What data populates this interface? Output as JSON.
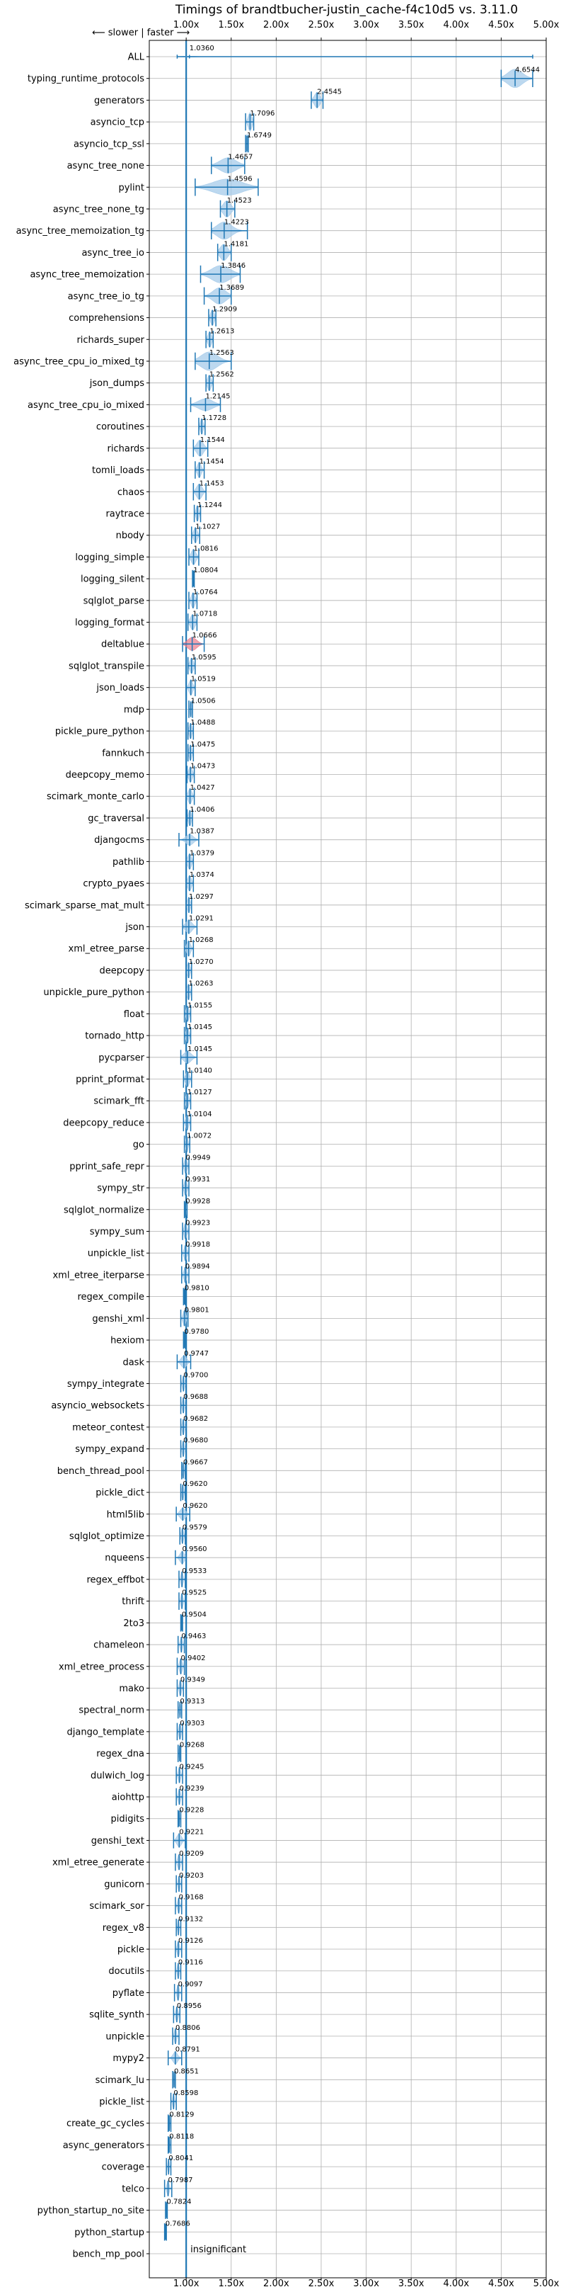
{
  "chart_data": {
    "type": "violin",
    "title": "Timings of brandtbucher-justin_cache-f4c10d5 vs. 3.11.0",
    "direction_label": "⟵ slower | faster ⟶",
    "x_ticks": [
      "1.00x",
      "1.50x",
      "2.00x",
      "2.50x",
      "3.00x",
      "3.50x",
      "4.00x",
      "4.50x",
      "5.00x"
    ],
    "x_tick_values": [
      1.0,
      1.5,
      2.0,
      2.5,
      3.0,
      3.5,
      4.0,
      4.5,
      5.0
    ],
    "xlim": [
      0.59,
      5.0
    ],
    "reference_line": 1.0,
    "insignificant_label": "insignificant",
    "colors": {
      "violin": "#a5cbea",
      "line": "#1f77b4",
      "reference": "#1f77b4",
      "highlight": "#e87c8c"
    },
    "benchmarks": [
      {
        "name": "ALL",
        "value": 1.036,
        "label": "1.0360",
        "lo": 0.9,
        "hi": 4.85,
        "width": 0.05,
        "spread": 0.07
      },
      {
        "name": "typing_runtime_protocols",
        "value": 4.6544,
        "label": "4.6544",
        "lo": 4.5,
        "hi": 4.85,
        "width": 0.85,
        "spread": 0.08
      },
      {
        "name": "generators",
        "value": 2.4545,
        "label": "2.4545",
        "lo": 2.39,
        "hi": 2.52,
        "width": 0.7,
        "spread": 0.03
      },
      {
        "name": "asyncio_tcp",
        "value": 1.7096,
        "label": "1.7096",
        "lo": 1.66,
        "hi": 1.75,
        "width": 0.85,
        "spread": 0.02
      },
      {
        "name": "asyncio_tcp_ssl",
        "value": 1.6749,
        "label": "1.6749",
        "lo": 1.66,
        "hi": 1.69,
        "width": 0.85,
        "spread": 0.007
      },
      {
        "name": "async_tree_none",
        "value": 1.4657,
        "label": "1.4657",
        "lo": 1.28,
        "hi": 1.65,
        "width": 0.7,
        "spread": 0.09
      },
      {
        "name": "pylint",
        "value": 1.4596,
        "label": "1.4596",
        "lo": 1.1,
        "hi": 1.8,
        "width": 0.75,
        "spread": 0.16
      },
      {
        "name": "async_tree_none_tg",
        "value": 1.4523,
        "label": "1.4523",
        "lo": 1.38,
        "hi": 1.54,
        "width": 0.75,
        "spread": 0.04
      },
      {
        "name": "async_tree_memoization_tg",
        "value": 1.4223,
        "label": "1.4223",
        "lo": 1.28,
        "hi": 1.68,
        "width": 0.8,
        "spread": 0.08
      },
      {
        "name": "async_tree_io",
        "value": 1.4181,
        "label": "1.4181",
        "lo": 1.35,
        "hi": 1.5,
        "width": 0.75,
        "spread": 0.04
      },
      {
        "name": "async_tree_memoization",
        "value": 1.3846,
        "label": "1.3846",
        "lo": 1.16,
        "hi": 1.6,
        "width": 0.8,
        "spread": 0.1
      },
      {
        "name": "async_tree_io_tg",
        "value": 1.3689,
        "label": "1.3689",
        "lo": 1.2,
        "hi": 1.5,
        "width": 0.75,
        "spread": 0.07
      },
      {
        "name": "comprehensions",
        "value": 1.2909,
        "label": "1.2909",
        "lo": 1.25,
        "hi": 1.33,
        "width": 0.7,
        "spread": 0.02
      },
      {
        "name": "richards_super",
        "value": 1.2613,
        "label": "1.2613",
        "lo": 1.22,
        "hi": 1.3,
        "width": 0.7,
        "spread": 0.02
      },
      {
        "name": "async_tree_cpu_io_mixed_tg",
        "value": 1.2563,
        "label": "1.2563",
        "lo": 1.1,
        "hi": 1.5,
        "width": 0.85,
        "spread": 0.09
      },
      {
        "name": "json_dumps",
        "value": 1.2562,
        "label": "1.2562",
        "lo": 1.22,
        "hi": 1.3,
        "width": 0.7,
        "spread": 0.02
      },
      {
        "name": "async_tree_cpu_io_mixed",
        "value": 1.2145,
        "label": "1.2145",
        "lo": 1.05,
        "hi": 1.38,
        "width": 0.55,
        "spread": 0.08
      },
      {
        "name": "coroutines",
        "value": 1.1728,
        "label": "1.1728",
        "lo": 1.14,
        "hi": 1.21,
        "width": 0.7,
        "spread": 0.015
      },
      {
        "name": "richards",
        "value": 1.1544,
        "label": "1.1544",
        "lo": 1.08,
        "hi": 1.24,
        "width": 0.75,
        "spread": 0.035
      },
      {
        "name": "tomli_loads",
        "value": 1.1454,
        "label": "1.1454",
        "lo": 1.1,
        "hi": 1.2,
        "width": 0.7,
        "spread": 0.02
      },
      {
        "name": "chaos",
        "value": 1.1453,
        "label": "1.1453",
        "lo": 1.08,
        "hi": 1.22,
        "width": 0.7,
        "spread": 0.03
      },
      {
        "name": "raytrace",
        "value": 1.1244,
        "label": "1.1244",
        "lo": 1.09,
        "hi": 1.16,
        "width": 0.7,
        "spread": 0.015
      },
      {
        "name": "nbody",
        "value": 1.1027,
        "label": "1.1027",
        "lo": 1.06,
        "hi": 1.15,
        "width": 0.7,
        "spread": 0.02
      },
      {
        "name": "logging_simple",
        "value": 1.0816,
        "label": "1.0816",
        "lo": 1.03,
        "hi": 1.14,
        "width": 0.7,
        "spread": 0.025
      },
      {
        "name": "logging_silent",
        "value": 1.0804,
        "label": "1.0804",
        "lo": 1.07,
        "hi": 1.09,
        "width": 0.7,
        "spread": 0.006
      },
      {
        "name": "sqlglot_parse",
        "value": 1.0764,
        "label": "1.0764",
        "lo": 1.03,
        "hi": 1.12,
        "width": 0.7,
        "spread": 0.02
      },
      {
        "name": "logging_format",
        "value": 1.0718,
        "label": "1.0718",
        "lo": 1.02,
        "hi": 1.12,
        "width": 0.7,
        "spread": 0.025
      },
      {
        "name": "deltablue",
        "value": 1.0666,
        "label": "1.0666",
        "lo": 0.96,
        "hi": 1.2,
        "width": 0.6,
        "spread": 0.05,
        "highlight": true
      },
      {
        "name": "sqlglot_transpile",
        "value": 1.0595,
        "label": "1.0595",
        "lo": 1.02,
        "hi": 1.1,
        "width": 0.7,
        "spread": 0.02
      },
      {
        "name": "json_loads",
        "value": 1.0519,
        "label": "1.0519",
        "lo": 1.0,
        "hi": 1.1,
        "width": 0.7,
        "spread": 0.02
      },
      {
        "name": "mdp",
        "value": 1.0506,
        "label": "1.0506",
        "lo": 1.03,
        "hi": 1.07,
        "width": 0.7,
        "spread": 0.01
      },
      {
        "name": "pickle_pure_python",
        "value": 1.0488,
        "label": "1.0488",
        "lo": 1.02,
        "hi": 1.08,
        "width": 0.7,
        "spread": 0.015
      },
      {
        "name": "fannkuch",
        "value": 1.0475,
        "label": "1.0475",
        "lo": 1.02,
        "hi": 1.08,
        "width": 0.7,
        "spread": 0.015
      },
      {
        "name": "deepcopy_memo",
        "value": 1.0473,
        "label": "1.0473",
        "lo": 1.01,
        "hi": 1.09,
        "width": 0.7,
        "spread": 0.02
      },
      {
        "name": "scimark_monte_carlo",
        "value": 1.0427,
        "label": "1.0427",
        "lo": 1.0,
        "hi": 1.09,
        "width": 0.7,
        "spread": 0.02
      },
      {
        "name": "gc_traversal",
        "value": 1.0406,
        "label": "1.0406",
        "lo": 1.01,
        "hi": 1.07,
        "width": 0.7,
        "spread": 0.015
      },
      {
        "name": "djangocms",
        "value": 1.0387,
        "label": "1.0387",
        "lo": 0.92,
        "hi": 1.14,
        "width": 0.5,
        "spread": 0.04
      },
      {
        "name": "pathlib",
        "value": 1.0379,
        "label": "1.0379",
        "lo": 1.0,
        "hi": 1.08,
        "width": 0.7,
        "spread": 0.02
      },
      {
        "name": "crypto_pyaes",
        "value": 1.0374,
        "label": "1.0374",
        "lo": 1.0,
        "hi": 1.08,
        "width": 0.7,
        "spread": 0.02
      },
      {
        "name": "scimark_sparse_mat_mult",
        "value": 1.0297,
        "label": "1.0297",
        "lo": 1.0,
        "hi": 1.06,
        "width": 0.7,
        "spread": 0.015
      },
      {
        "name": "json",
        "value": 1.0291,
        "label": "1.0291",
        "lo": 0.96,
        "hi": 1.12,
        "width": 0.6,
        "spread": 0.035
      },
      {
        "name": "xml_etree_parse",
        "value": 1.0268,
        "label": "1.0268",
        "lo": 0.98,
        "hi": 1.08,
        "width": 0.7,
        "spread": 0.02
      },
      {
        "name": "deepcopy",
        "value": 1.027,
        "label": "1.0270",
        "lo": 1.0,
        "hi": 1.06,
        "width": 0.7,
        "spread": 0.015
      },
      {
        "name": "unpickle_pure_python",
        "value": 1.0263,
        "label": "1.0263",
        "lo": 1.0,
        "hi": 1.06,
        "width": 0.7,
        "spread": 0.015
      },
      {
        "name": "float",
        "value": 1.0155,
        "label": "1.0155",
        "lo": 0.98,
        "hi": 1.05,
        "width": 0.7,
        "spread": 0.015
      },
      {
        "name": "tornado_http",
        "value": 1.0145,
        "label": "1.0145",
        "lo": 0.98,
        "hi": 1.05,
        "width": 0.7,
        "spread": 0.015
      },
      {
        "name": "pycparser",
        "value": 1.0145,
        "label": "1.0145",
        "lo": 0.94,
        "hi": 1.12,
        "width": 0.55,
        "spread": 0.04
      },
      {
        "name": "pprint_pformat",
        "value": 1.014,
        "label": "1.0140",
        "lo": 0.97,
        "hi": 1.06,
        "width": 0.7,
        "spread": 0.02
      },
      {
        "name": "scimark_fft",
        "value": 1.0127,
        "label": "1.0127",
        "lo": 0.98,
        "hi": 1.05,
        "width": 0.7,
        "spread": 0.015
      },
      {
        "name": "deepcopy_reduce",
        "value": 1.0104,
        "label": "1.0104",
        "lo": 0.97,
        "hi": 1.05,
        "width": 0.7,
        "spread": 0.015
      },
      {
        "name": "go",
        "value": 1.0072,
        "label": "1.0072",
        "lo": 0.98,
        "hi": 1.04,
        "width": 0.7,
        "spread": 0.012
      },
      {
        "name": "pprint_safe_repr",
        "value": 0.9949,
        "label": "0.9949",
        "lo": 0.96,
        "hi": 1.03,
        "width": 0.7,
        "spread": 0.015
      },
      {
        "name": "sympy_str",
        "value": 0.9931,
        "label": "0.9931",
        "lo": 0.96,
        "hi": 1.03,
        "width": 0.7,
        "spread": 0.015
      },
      {
        "name": "sqlglot_normalize",
        "value": 0.9928,
        "label": "0.9928",
        "lo": 0.98,
        "hi": 1.01,
        "width": 0.7,
        "spread": 0.007
      },
      {
        "name": "sympy_sum",
        "value": 0.9923,
        "label": "0.9923",
        "lo": 0.96,
        "hi": 1.03,
        "width": 0.7,
        "spread": 0.015
      },
      {
        "name": "unpickle_list",
        "value": 0.9918,
        "label": "0.9918",
        "lo": 0.95,
        "hi": 1.03,
        "width": 0.7,
        "spread": 0.015
      },
      {
        "name": "xml_etree_iterparse",
        "value": 0.9894,
        "label": "0.9894",
        "lo": 0.95,
        "hi": 1.03,
        "width": 0.7,
        "spread": 0.015
      },
      {
        "name": "regex_compile",
        "value": 0.981,
        "label": "0.9810",
        "lo": 0.97,
        "hi": 0.99,
        "width": 0.7,
        "spread": 0.005
      },
      {
        "name": "genshi_xml",
        "value": 0.9801,
        "label": "0.9801",
        "lo": 0.94,
        "hi": 1.02,
        "width": 0.7,
        "spread": 0.015
      },
      {
        "name": "hexiom",
        "value": 0.978,
        "label": "0.9780",
        "lo": 0.97,
        "hi": 0.99,
        "width": 0.7,
        "spread": 0.005
      },
      {
        "name": "dask",
        "value": 0.9747,
        "label": "0.9747",
        "lo": 0.9,
        "hi": 1.05,
        "width": 0.55,
        "spread": 0.03
      },
      {
        "name": "sympy_integrate",
        "value": 0.97,
        "label": "0.9700",
        "lo": 0.94,
        "hi": 1.0,
        "width": 0.7,
        "spread": 0.012
      },
      {
        "name": "asyncio_websockets",
        "value": 0.9688,
        "label": "0.9688",
        "lo": 0.94,
        "hi": 1.0,
        "width": 0.7,
        "spread": 0.012
      },
      {
        "name": "meteor_contest",
        "value": 0.9682,
        "label": "0.9682",
        "lo": 0.94,
        "hi": 1.0,
        "width": 0.7,
        "spread": 0.012
      },
      {
        "name": "sympy_expand",
        "value": 0.968,
        "label": "0.9680",
        "lo": 0.94,
        "hi": 1.0,
        "width": 0.7,
        "spread": 0.012
      },
      {
        "name": "bench_thread_pool",
        "value": 0.9667,
        "label": "0.9667",
        "lo": 0.95,
        "hi": 0.99,
        "width": 0.7,
        "spread": 0.008
      },
      {
        "name": "pickle_dict",
        "value": 0.962,
        "label": "0.9620",
        "lo": 0.94,
        "hi": 0.99,
        "width": 0.7,
        "spread": 0.01
      },
      {
        "name": "html5lib",
        "value": 0.962,
        "label": "0.9620",
        "lo": 0.89,
        "hi": 1.04,
        "width": 0.55,
        "spread": 0.03
      },
      {
        "name": "sqlglot_optimize",
        "value": 0.9579,
        "label": "0.9579",
        "lo": 0.93,
        "hi": 0.99,
        "width": 0.7,
        "spread": 0.012
      },
      {
        "name": "nqueens",
        "value": 0.956,
        "label": "0.9560",
        "lo": 0.88,
        "hi": 1.0,
        "width": 0.55,
        "spread": 0.025
      },
      {
        "name": "regex_effbot",
        "value": 0.9533,
        "label": "0.9533",
        "lo": 0.92,
        "hi": 0.99,
        "width": 0.7,
        "spread": 0.012
      },
      {
        "name": "thrift",
        "value": 0.9525,
        "label": "0.9525",
        "lo": 0.92,
        "hi": 0.99,
        "width": 0.7,
        "spread": 0.012
      },
      {
        "name": "2to3",
        "value": 0.9504,
        "label": "0.9504",
        "lo": 0.94,
        "hi": 0.96,
        "width": 0.7,
        "spread": 0.005
      },
      {
        "name": "chameleon",
        "value": 0.9463,
        "label": "0.9463",
        "lo": 0.91,
        "hi": 0.98,
        "width": 0.7,
        "spread": 0.012
      },
      {
        "name": "xml_etree_process",
        "value": 0.9402,
        "label": "0.9402",
        "lo": 0.9,
        "hi": 0.98,
        "width": 0.7,
        "spread": 0.015
      },
      {
        "name": "mako",
        "value": 0.9349,
        "label": "0.9349",
        "lo": 0.9,
        "hi": 0.97,
        "width": 0.7,
        "spread": 0.012
      },
      {
        "name": "spectral_norm",
        "value": 0.9313,
        "label": "0.9313",
        "lo": 0.91,
        "hi": 0.95,
        "width": 0.7,
        "spread": 0.008
      },
      {
        "name": "django_template",
        "value": 0.9303,
        "label": "0.9303",
        "lo": 0.9,
        "hi": 0.96,
        "width": 0.7,
        "spread": 0.012
      },
      {
        "name": "regex_dna",
        "value": 0.9268,
        "label": "0.9268",
        "lo": 0.91,
        "hi": 0.94,
        "width": 0.7,
        "spread": 0.006
      },
      {
        "name": "dulwich_log",
        "value": 0.9245,
        "label": "0.9245",
        "lo": 0.89,
        "hi": 0.96,
        "width": 0.7,
        "spread": 0.012
      },
      {
        "name": "aiohttp",
        "value": 0.9239,
        "label": "0.9239",
        "lo": 0.89,
        "hi": 0.96,
        "width": 0.7,
        "spread": 0.012
      },
      {
        "name": "pidigits",
        "value": 0.9228,
        "label": "0.9228",
        "lo": 0.91,
        "hi": 0.94,
        "width": 0.7,
        "spread": 0.005
      },
      {
        "name": "genshi_text",
        "value": 0.9221,
        "label": "0.9221",
        "lo": 0.86,
        "hi": 0.99,
        "width": 0.6,
        "spread": 0.025
      },
      {
        "name": "xml_etree_generate",
        "value": 0.9209,
        "label": "0.9209",
        "lo": 0.88,
        "hi": 0.96,
        "width": 0.7,
        "spread": 0.015
      },
      {
        "name": "gunicorn",
        "value": 0.9203,
        "label": "0.9203",
        "lo": 0.89,
        "hi": 0.95,
        "width": 0.7,
        "spread": 0.01
      },
      {
        "name": "scimark_sor",
        "value": 0.9168,
        "label": "0.9168",
        "lo": 0.88,
        "hi": 0.95,
        "width": 0.7,
        "spread": 0.012
      },
      {
        "name": "regex_v8",
        "value": 0.9132,
        "label": "0.9132",
        "lo": 0.89,
        "hi": 0.94,
        "width": 0.7,
        "spread": 0.008
      },
      {
        "name": "pickle",
        "value": 0.9126,
        "label": "0.9126",
        "lo": 0.88,
        "hi": 0.95,
        "width": 0.7,
        "spread": 0.012
      },
      {
        "name": "docutils",
        "value": 0.9116,
        "label": "0.9116",
        "lo": 0.88,
        "hi": 0.94,
        "width": 0.7,
        "spread": 0.01
      },
      {
        "name": "pyflate",
        "value": 0.9097,
        "label": "0.9097",
        "lo": 0.87,
        "hi": 0.95,
        "width": 0.7,
        "spread": 0.012
      },
      {
        "name": "sqlite_synth",
        "value": 0.8956,
        "label": "0.8956",
        "lo": 0.86,
        "hi": 0.93,
        "width": 0.7,
        "spread": 0.012
      },
      {
        "name": "unpickle",
        "value": 0.8806,
        "label": "0.8806",
        "lo": 0.85,
        "hi": 0.92,
        "width": 0.7,
        "spread": 0.012
      },
      {
        "name": "mypy2",
        "value": 0.8791,
        "label": "0.8791",
        "lo": 0.8,
        "hi": 0.95,
        "width": 0.55,
        "spread": 0.025
      },
      {
        "name": "scimark_lu",
        "value": 0.8651,
        "label": "0.8651",
        "lo": 0.85,
        "hi": 0.88,
        "width": 0.7,
        "spread": 0.005
      },
      {
        "name": "pickle_list",
        "value": 0.8598,
        "label": "0.8598",
        "lo": 0.83,
        "hi": 0.89,
        "width": 0.7,
        "spread": 0.01
      },
      {
        "name": "create_gc_cycles",
        "value": 0.8129,
        "label": "0.8129",
        "lo": 0.8,
        "hi": 0.83,
        "width": 0.7,
        "spread": 0.006
      },
      {
        "name": "async_generators",
        "value": 0.8118,
        "label": "0.8118",
        "lo": 0.8,
        "hi": 0.83,
        "width": 0.7,
        "spread": 0.006
      },
      {
        "name": "coverage",
        "value": 0.8041,
        "label": "0.8041",
        "lo": 0.78,
        "hi": 0.83,
        "width": 0.7,
        "spread": 0.008
      },
      {
        "name": "telco",
        "value": 0.7987,
        "label": "0.7987",
        "lo": 0.76,
        "hi": 0.84,
        "width": 0.7,
        "spread": 0.012
      },
      {
        "name": "python_startup_no_site",
        "value": 0.7824,
        "label": "0.7824",
        "lo": 0.77,
        "hi": 0.79,
        "width": 0.7,
        "spread": 0.004
      },
      {
        "name": "python_startup",
        "value": 0.7686,
        "label": "0.7686",
        "lo": 0.76,
        "hi": 0.78,
        "width": 0.7,
        "spread": 0.004
      },
      {
        "name": "bench_mp_pool",
        "value": 1.0,
        "label": "",
        "lo": 1.0,
        "hi": 1.0,
        "width": 0.0,
        "spread": 0.0,
        "insignificant": true
      }
    ]
  }
}
